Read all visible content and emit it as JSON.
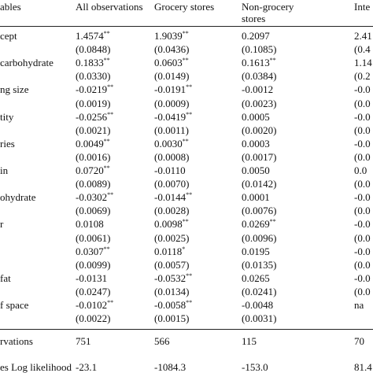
{
  "table": {
    "header": [
      "ables",
      "All observations",
      "Grocery stores",
      "Non-grocery stores",
      "Inte"
    ],
    "rows": [
      {
        "label": "cept",
        "est": [
          {
            "v": "1.4574",
            "sig": "**"
          },
          {
            "v": "1.9039",
            "sig": "**"
          },
          {
            "v": "0.2097"
          },
          {
            "v": "2.41"
          }
        ],
        "se": [
          "(0.0848)",
          "(0.0436)",
          "(0.1085)",
          "(0.4"
        ]
      },
      {
        "label": "carbohydrate",
        "est": [
          {
            "v": "0.1833",
            "sig": "**"
          },
          {
            "v": "0.0603",
            "sig": "**"
          },
          {
            "v": "0.1613",
            "sig": "**"
          },
          {
            "v": "1.14"
          }
        ],
        "se": [
          "(0.0330)",
          "(0.0149)",
          "(0.0384)",
          "(0.2"
        ]
      },
      {
        "label": "ng size",
        "est": [
          {
            "v": "-0.0219",
            "sig": "**"
          },
          {
            "v": "-0.0191",
            "sig": "**"
          },
          {
            "v": "-0.0012"
          },
          {
            "v": "-0.0"
          }
        ],
        "se": [
          "(0.0019)",
          "(0.0009)",
          "(0.0023)",
          "(0.0"
        ]
      },
      {
        "label": "tity",
        "est": [
          {
            "v": "-0.0256",
            "sig": "**"
          },
          {
            "v": "-0.0419",
            "sig": "**"
          },
          {
            "v": "0.0005"
          },
          {
            "v": "-0.0"
          }
        ],
        "se": [
          "(0.0021)",
          "(0.0011)",
          "(0.0020)",
          "(0.0"
        ]
      },
      {
        "label": "ries",
        "est": [
          {
            "v": "0.0049",
            "sig": "**"
          },
          {
            "v": "0.0030",
            "sig": "**"
          },
          {
            "v": "0.0003"
          },
          {
            "v": "-0.0"
          }
        ],
        "se": [
          "(0.0016)",
          "(0.0008)",
          "(0.0017)",
          "(0.0"
        ]
      },
      {
        "label": "in",
        "est": [
          {
            "v": "0.0720",
            "sig": "**"
          },
          {
            "v": "-0.0110"
          },
          {
            "v": "0.0050"
          },
          {
            "v": "0.0"
          }
        ],
        "se": [
          "(0.0089)",
          "(0.0070)",
          "(0.0142)",
          "(0.0"
        ]
      },
      {
        "label": "ohydrate",
        "est": [
          {
            "v": "-0.0302",
            "sig": "**"
          },
          {
            "v": "-0.0144",
            "sig": "**"
          },
          {
            "v": "0.0001"
          },
          {
            "v": "-0.0"
          }
        ],
        "se": [
          "(0.0069)",
          "(0.0028)",
          "(0.0076)",
          "(0.0"
        ]
      },
      {
        "label": "r",
        "est": [
          {
            "v": "0.0108"
          },
          {
            "v": "0.0098",
            "sig": "**"
          },
          {
            "v": "0.0269",
            "sig": "**"
          },
          {
            "v": "-0.0"
          }
        ],
        "se": [
          "(0.0061)",
          "(0.0025)",
          "(0.0096)",
          "(0.0"
        ]
      },
      {
        "label": "",
        "est": [
          {
            "v": "0.0307",
            "sig": "**"
          },
          {
            "v": "0.0118",
            "sig": "*"
          },
          {
            "v": "0.0195"
          },
          {
            "v": "-0.0"
          }
        ],
        "se": [
          "(0.0099)",
          "(0.0057)",
          "(0.0135)",
          "(0.0"
        ]
      },
      {
        "label": "fat",
        "est": [
          {
            "v": "-0.0131"
          },
          {
            "v": "-0.0532",
            "sig": "**"
          },
          {
            "v": "0.0265"
          },
          {
            "v": "-0.0"
          }
        ],
        "se": [
          "(0.0247)",
          "(0.0134)",
          "(0.0241)",
          "(0.0"
        ]
      },
      {
        "label": "f space",
        "est": [
          {
            "v": "-0.0102",
            "sig": "**"
          },
          {
            "v": "-0.0058",
            "sig": "**"
          },
          {
            "v": "-0.0048"
          },
          {
            "v": "na"
          }
        ],
        "se": [
          "(0.0022)",
          "(0.0015)",
          "(0.0031)"
        ]
      }
    ],
    "footer": [
      {
        "label": "rvations",
        "cells": [
          "751",
          "566",
          "115",
          "70"
        ]
      },
      {
        "label": "es Log likelihood",
        "cells": [
          "-23.1",
          "-1084.3",
          "-153.0",
          "81.4"
        ]
      }
    ]
  }
}
